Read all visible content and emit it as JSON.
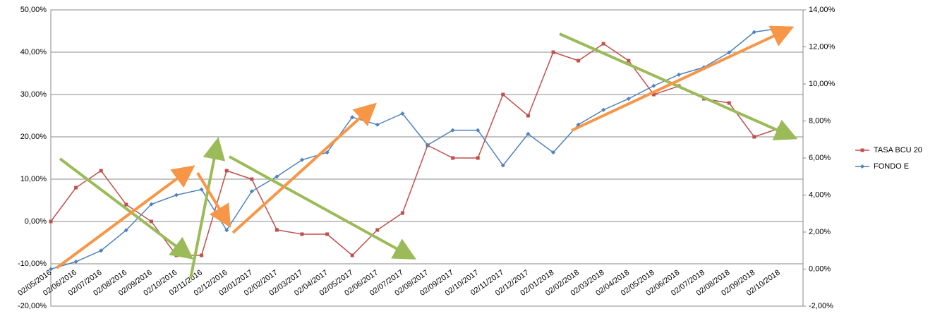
{
  "chart_data": {
    "type": "line",
    "categories": [
      "02/05/2016",
      "02/06/2016",
      "02/07/2016",
      "02/08/2016",
      "02/09/2016",
      "02/10/2016",
      "02/11/2016",
      "02/12/2016",
      "02/01/2017",
      "02/02/2017",
      "02/03/2017",
      "02/04/2017",
      "02/05/2017",
      "02/06/2017",
      "02/07/2017",
      "02/08/2017",
      "02/09/2017",
      "02/10/2017",
      "02/11/2017",
      "02/12/2017",
      "02/01/2018",
      "02/02/2018",
      "02/03/2018",
      "02/04/2018",
      "02/05/2018",
      "02/06/2018",
      "02/07/2018",
      "02/08/2018",
      "02/09/2018",
      "02/10/2018"
    ],
    "series": [
      {
        "name": "TASA BCU 20",
        "color": "#c0504d",
        "values": [
          0,
          8,
          12,
          4,
          0,
          -8,
          -8,
          12,
          10,
          -2,
          -3,
          -3,
          -8,
          -2,
          2,
          18,
          15,
          15,
          30,
          25,
          40,
          38,
          42,
          38,
          30,
          32,
          29,
          28,
          20,
          22
        ]
      },
      {
        "name": "FONDO E",
        "color": "#4f81bd",
        "axis": "y2",
        "values": [
          0,
          0.4,
          1.0,
          2.1,
          3.5,
          4.0,
          4.3,
          2.1,
          4.2,
          5.0,
          5.9,
          6.3,
          8.2,
          7.8,
          8.4,
          6.7,
          7.5,
          7.5,
          5.6,
          7.3,
          6.3,
          7.8,
          8.6,
          9.2,
          9.9,
          10.5,
          10.9,
          11.7,
          12.8,
          13.0
        ]
      }
    ],
    "ylim": [
      -20,
      50
    ],
    "yticks": [
      {
        "value": -20,
        "label": "-20,00%"
      },
      {
        "value": -10,
        "label": "-10,00%"
      },
      {
        "value": 0,
        "label": "0,00%"
      },
      {
        "value": 10,
        "label": "10,00%"
      },
      {
        "value": 20,
        "label": "20,00%"
      },
      {
        "value": 30,
        "label": "30,00%"
      },
      {
        "value": 40,
        "label": "40,00%"
      },
      {
        "value": 50,
        "label": "50,00%"
      }
    ],
    "y2lim": [
      -2,
      14
    ],
    "y2ticks": [
      {
        "value": -2,
        "label": "-2,00%"
      },
      {
        "value": 0,
        "label": "0,00%"
      },
      {
        "value": 2,
        "label": "2,00%"
      },
      {
        "value": 4,
        "label": "4,00%"
      },
      {
        "value": 6,
        "label": "6,00%"
      },
      {
        "value": 8,
        "label": "8,00%"
      },
      {
        "value": 10,
        "label": "10,00%"
      },
      {
        "value": 12,
        "label": "12,00%"
      },
      {
        "value": 14,
        "label": "14,00%"
      }
    ],
    "grid": true,
    "legend": "right"
  }
}
